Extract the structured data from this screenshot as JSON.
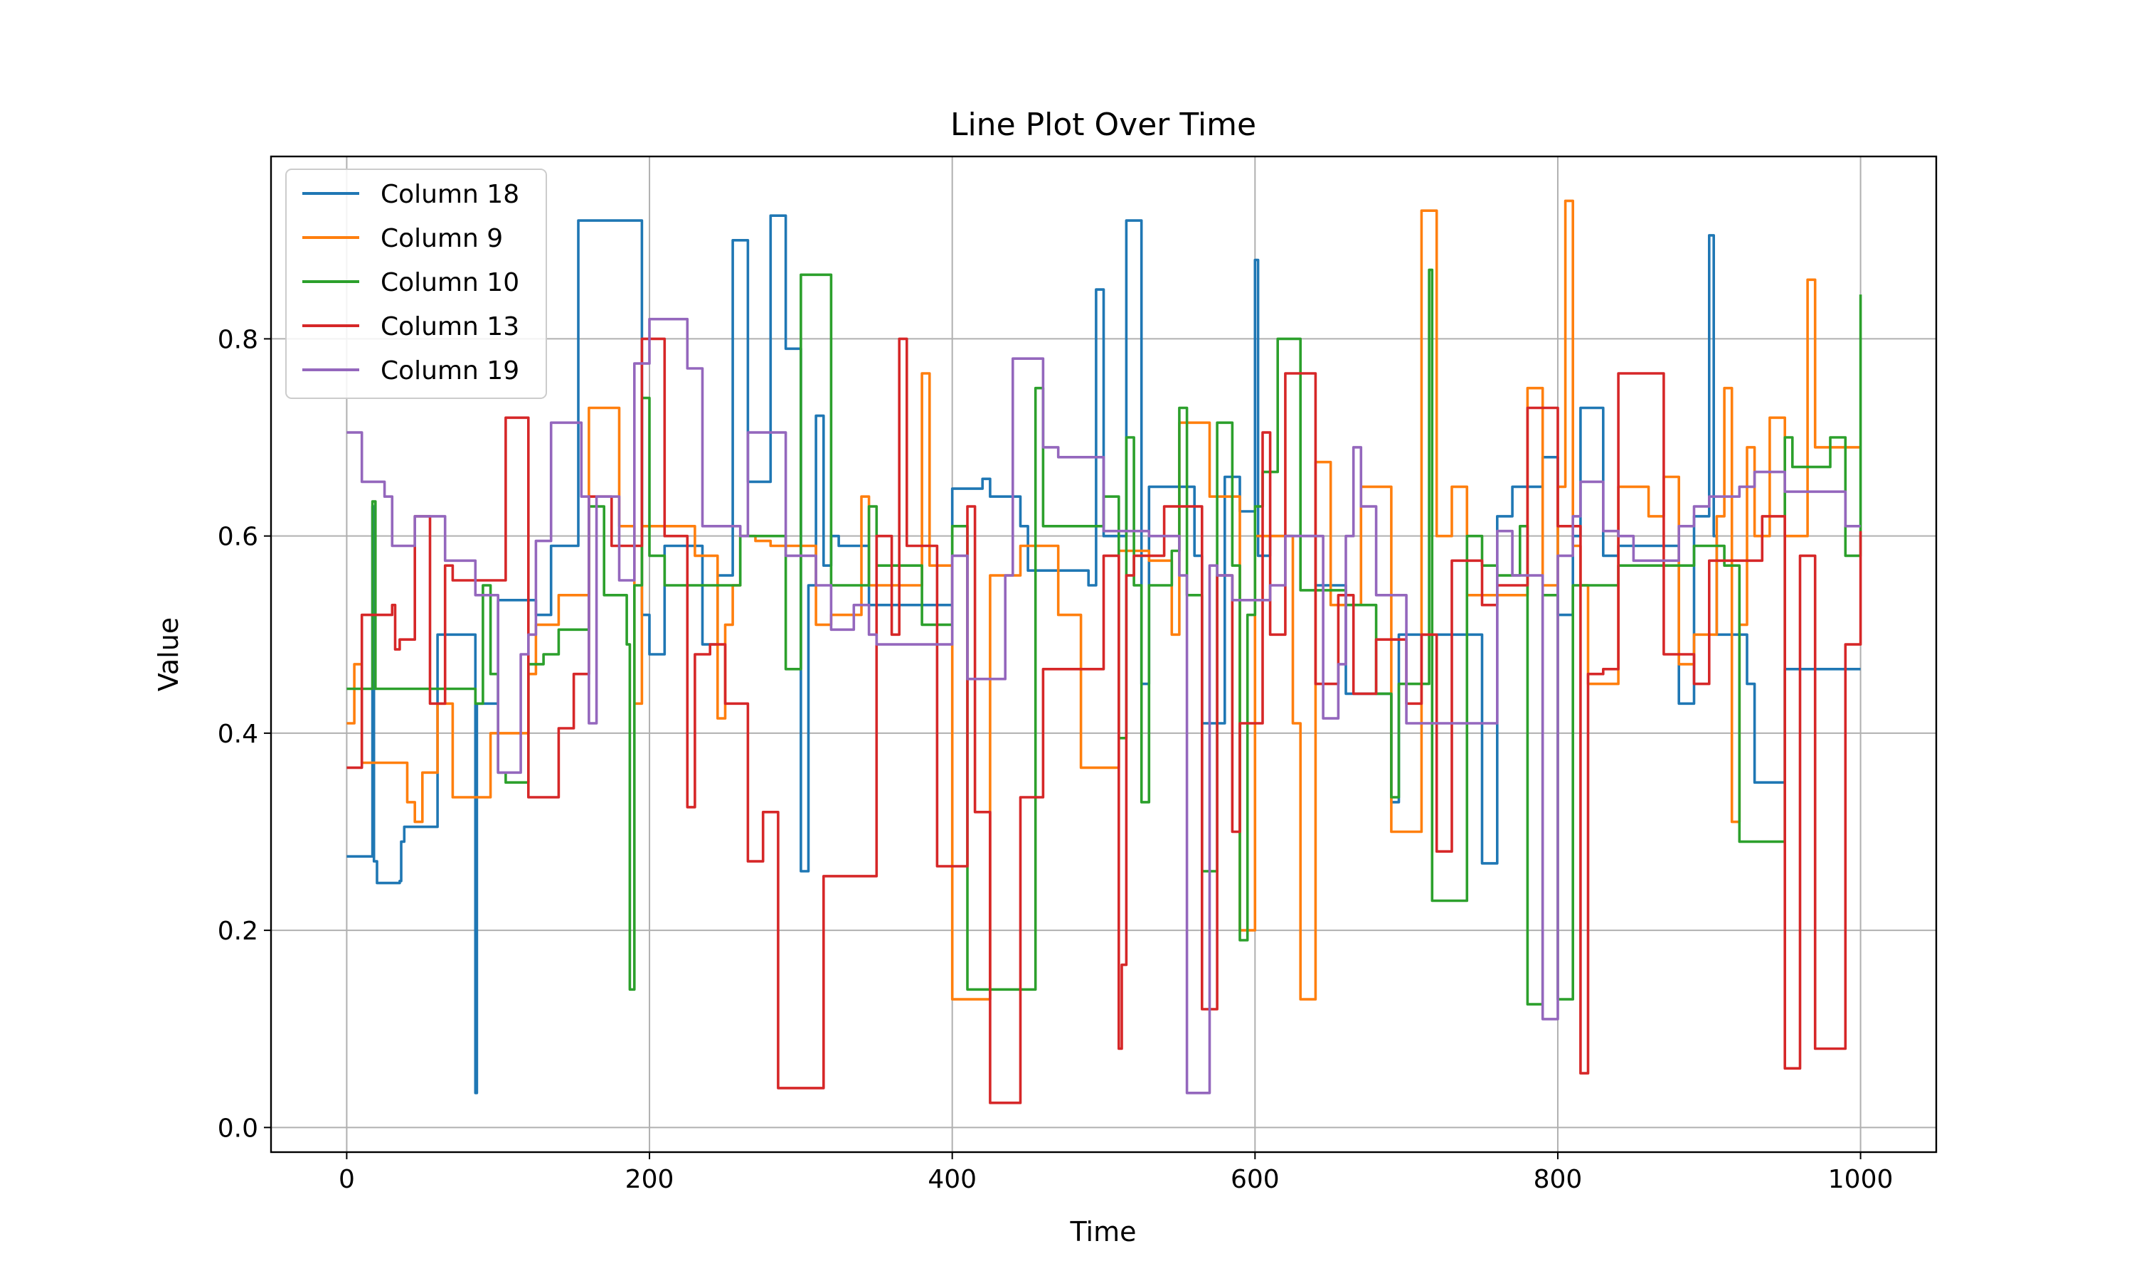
{
  "chart_data": {
    "type": "line",
    "step": true,
    "title": "Line Plot Over Time",
    "xlabel": "Time",
    "ylabel": "Value",
    "xlim": [
      -50,
      1050
    ],
    "ylim": [
      -0.025,
      0.985
    ],
    "xticks": [
      0,
      200,
      400,
      600,
      800,
      1000
    ],
    "xtick_labels": [
      "0",
      "200",
      "400",
      "600",
      "800",
      "1000"
    ],
    "yticks": [
      0.0,
      0.2,
      0.4,
      0.6,
      0.8
    ],
    "ytick_labels": [
      "0.0",
      "0.2",
      "0.4",
      "0.6",
      "0.8"
    ],
    "grid": true,
    "legend_position": "upper left",
    "series": [
      {
        "name": "Column 18",
        "color": "#1f77b4",
        "x": [
          0,
          16,
          17,
          18,
          20,
          28,
          35,
          36,
          38,
          60,
          65,
          84,
          85,
          86,
          100,
          110,
          125,
          135,
          150,
          153,
          155,
          195,
          200,
          205,
          210,
          220,
          235,
          245,
          255,
          265,
          270,
          280,
          290,
          295,
          300,
          305,
          310,
          315,
          320,
          325,
          340,
          345,
          350,
          355,
          365,
          400,
          405,
          410,
          420,
          425,
          435,
          440,
          445,
          450,
          460,
          470,
          490,
          495,
          500,
          510,
          515,
          520,
          525,
          530,
          535,
          545,
          560,
          565,
          570,
          580,
          585,
          590,
          600,
          602,
          605,
          610,
          620,
          640,
          650,
          660,
          670,
          680,
          690,
          695,
          700,
          720,
          740,
          750,
          760,
          770,
          780,
          790,
          800,
          810,
          815,
          820,
          830,
          840,
          850,
          870,
          880,
          890,
          900,
          903,
          905,
          915,
          925,
          930,
          935,
          945,
          950,
          1000
        ],
        "values": [
          0.275,
          0.275,
          0.63,
          0.27,
          0.248,
          0.248,
          0.25,
          0.29,
          0.305,
          0.5,
          0.5,
          0.5,
          0.035,
          0.43,
          0.535,
          0.535,
          0.52,
          0.59,
          0.59,
          0.92,
          0.92,
          0.52,
          0.48,
          0.48,
          0.59,
          0.59,
          0.49,
          0.56,
          0.9,
          0.655,
          0.655,
          0.925,
          0.79,
          0.79,
          0.26,
          0.55,
          0.722,
          0.57,
          0.6,
          0.59,
          0.59,
          0.53,
          0.53,
          0.53,
          0.53,
          0.648,
          0.648,
          0.648,
          0.658,
          0.64,
          0.64,
          0.64,
          0.61,
          0.565,
          0.565,
          0.565,
          0.55,
          0.85,
          0.6,
          0.6,
          0.92,
          0.92,
          0.45,
          0.65,
          0.65,
          0.65,
          0.58,
          0.41,
          0.41,
          0.66,
          0.66,
          0.625,
          0.88,
          0.58,
          0.58,
          0.6,
          0.6,
          0.55,
          0.55,
          0.44,
          0.44,
          0.44,
          0.33,
          0.5,
          0.5,
          0.5,
          0.5,
          0.268,
          0.62,
          0.65,
          0.65,
          0.68,
          0.52,
          0.6,
          0.73,
          0.73,
          0.58,
          0.59,
          0.59,
          0.59,
          0.43,
          0.62,
          0.905,
          0.6,
          0.5,
          0.5,
          0.45,
          0.35,
          0.35,
          0.35,
          0.465,
          0.465
        ]
      },
      {
        "name": "Column 9",
        "color": "#ff7f0e",
        "x": [
          0,
          5,
          10,
          20,
          40,
          45,
          50,
          55,
          60,
          70,
          90,
          95,
          100,
          110,
          120,
          125,
          135,
          140,
          155,
          160,
          175,
          180,
          190,
          195,
          210,
          230,
          245,
          250,
          255,
          260,
          270,
          280,
          300,
          310,
          320,
          330,
          340,
          345,
          350,
          360,
          380,
          385,
          390,
          400,
          420,
          425,
          440,
          445,
          455,
          470,
          485,
          500,
          510,
          520,
          530,
          540,
          545,
          550,
          560,
          570,
          580,
          590,
          600,
          620,
          625,
          630,
          640,
          650,
          660,
          670,
          690,
          700,
          710,
          715,
          720,
          730,
          740,
          760,
          770,
          780,
          790,
          800,
          805,
          810,
          815,
          820,
          830,
          840,
          850,
          860,
          870,
          880,
          890,
          900,
          905,
          910,
          915,
          920,
          925,
          930,
          940,
          950,
          960,
          965,
          970,
          1000
        ],
        "values": [
          0.41,
          0.47,
          0.37,
          0.37,
          0.33,
          0.31,
          0.36,
          0.36,
          0.43,
          0.335,
          0.335,
          0.4,
          0.4,
          0.4,
          0.46,
          0.51,
          0.51,
          0.54,
          0.54,
          0.73,
          0.73,
          0.61,
          0.43,
          0.61,
          0.61,
          0.58,
          0.415,
          0.51,
          0.55,
          0.6,
          0.595,
          0.59,
          0.59,
          0.51,
          0.52,
          0.52,
          0.64,
          0.55,
          0.55,
          0.55,
          0.765,
          0.57,
          0.57,
          0.13,
          0.13,
          0.56,
          0.56,
          0.59,
          0.59,
          0.52,
          0.365,
          0.365,
          0.585,
          0.585,
          0.575,
          0.575,
          0.5,
          0.715,
          0.715,
          0.64,
          0.64,
          0.2,
          0.6,
          0.6,
          0.41,
          0.13,
          0.675,
          0.53,
          0.53,
          0.65,
          0.3,
          0.3,
          0.93,
          0.93,
          0.6,
          0.65,
          0.54,
          0.54,
          0.54,
          0.75,
          0.55,
          0.65,
          0.94,
          0.59,
          0.55,
          0.45,
          0.45,
          0.65,
          0.65,
          0.62,
          0.66,
          0.47,
          0.5,
          0.5,
          0.62,
          0.75,
          0.31,
          0.51,
          0.69,
          0.6,
          0.72,
          0.6,
          0.6,
          0.86,
          0.69,
          0.69
        ]
      },
      {
        "name": "Column 10",
        "color": "#2ca02c",
        "x": [
          0,
          15,
          17,
          19,
          22,
          45,
          80,
          85,
          90,
          95,
          100,
          105,
          115,
          120,
          125,
          130,
          140,
          150,
          160,
          170,
          185,
          187,
          190,
          195,
          200,
          210,
          235,
          260,
          280,
          290,
          300,
          310,
          320,
          340,
          345,
          350,
          360,
          380,
          385,
          400,
          410,
          420,
          440,
          455,
          460,
          470,
          500,
          510,
          515,
          520,
          525,
          530,
          545,
          550,
          555,
          560,
          565,
          570,
          575,
          585,
          590,
          595,
          600,
          605,
          615,
          625,
          630,
          640,
          650,
          660,
          670,
          680,
          690,
          695,
          700,
          715,
          717,
          720,
          730,
          740,
          750,
          760,
          770,
          775,
          780,
          790,
          800,
          805,
          810,
          820,
          830,
          840,
          850,
          860,
          870,
          880,
          890,
          900,
          910,
          920,
          930,
          940,
          950,
          955,
          960,
          980,
          985,
          990,
          995,
          1000
        ],
        "values": [
          0.445,
          0.445,
          0.635,
          0.445,
          0.445,
          0.445,
          0.445,
          0.43,
          0.55,
          0.46,
          0.36,
          0.35,
          0.35,
          0.47,
          0.47,
          0.48,
          0.505,
          0.505,
          0.63,
          0.54,
          0.49,
          0.14,
          0.55,
          0.74,
          0.58,
          0.55,
          0.55,
          0.6,
          0.6,
          0.465,
          0.865,
          0.865,
          0.55,
          0.55,
          0.63,
          0.57,
          0.57,
          0.51,
          0.51,
          0.61,
          0.14,
          0.14,
          0.14,
          0.75,
          0.61,
          0.61,
          0.64,
          0.395,
          0.7,
          0.55,
          0.33,
          0.55,
          0.585,
          0.73,
          0.54,
          0.54,
          0.26,
          0.26,
          0.715,
          0.57,
          0.19,
          0.52,
          0.63,
          0.665,
          0.8,
          0.8,
          0.545,
          0.545,
          0.545,
          0.53,
          0.53,
          0.44,
          0.335,
          0.45,
          0.45,
          0.87,
          0.23,
          0.23,
          0.23,
          0.6,
          0.57,
          0.56,
          0.56,
          0.61,
          0.125,
          0.54,
          0.13,
          0.13,
          0.55,
          0.55,
          0.55,
          0.57,
          0.57,
          0.57,
          0.57,
          0.57,
          0.59,
          0.59,
          0.57,
          0.29,
          0.29,
          0.29,
          0.7,
          0.67,
          0.67,
          0.7,
          0.7,
          0.58,
          0.58,
          0.845
        ]
      },
      {
        "name": "Column 13",
        "color": "#d62728",
        "x": [
          0,
          5,
          10,
          25,
          30,
          32,
          35,
          45,
          50,
          55,
          60,
          65,
          70,
          80,
          105,
          110,
          120,
          125,
          140,
          150,
          160,
          175,
          180,
          195,
          210,
          225,
          230,
          240,
          245,
          250,
          265,
          275,
          285,
          300,
          315,
          330,
          345,
          350,
          360,
          365,
          370,
          390,
          400,
          410,
          415,
          425,
          435,
          445,
          460,
          480,
          500,
          510,
          512,
          515,
          520,
          525,
          540,
          565,
          570,
          575,
          585,
          590,
          600,
          605,
          610,
          620,
          625,
          640,
          655,
          665,
          670,
          680,
          690,
          700,
          710,
          720,
          730,
          740,
          750,
          760,
          770,
          780,
          790,
          800,
          810,
          815,
          820,
          830,
          840,
          860,
          870,
          880,
          890,
          900,
          910,
          920,
          935,
          950,
          955,
          960,
          965,
          970,
          990,
          1000
        ],
        "values": [
          0.365,
          0.365,
          0.52,
          0.52,
          0.53,
          0.485,
          0.495,
          0.62,
          0.62,
          0.43,
          0.43,
          0.57,
          0.555,
          0.555,
          0.72,
          0.72,
          0.335,
          0.335,
          0.405,
          0.46,
          0.64,
          0.59,
          0.59,
          0.8,
          0.6,
          0.325,
          0.48,
          0.49,
          0.49,
          0.43,
          0.27,
          0.32,
          0.04,
          0.04,
          0.255,
          0.255,
          0.255,
          0.6,
          0.5,
          0.8,
          0.59,
          0.265,
          0.265,
          0.63,
          0.32,
          0.025,
          0.025,
          0.335,
          0.465,
          0.465,
          0.58,
          0.08,
          0.165,
          0.56,
          0.58,
          0.58,
          0.63,
          0.12,
          0.12,
          0.56,
          0.3,
          0.41,
          0.41,
          0.705,
          0.5,
          0.765,
          0.765,
          0.45,
          0.54,
          0.44,
          0.44,
          0.495,
          0.495,
          0.43,
          0.5,
          0.28,
          0.575,
          0.575,
          0.53,
          0.55,
          0.55,
          0.73,
          0.73,
          0.61,
          0.61,
          0.055,
          0.46,
          0.465,
          0.765,
          0.765,
          0.48,
          0.48,
          0.45,
          0.575,
          0.575,
          0.575,
          0.62,
          0.06,
          0.06,
          0.58,
          0.58,
          0.08,
          0.49,
          0.605
        ]
      },
      {
        "name": "Column 19",
        "color": "#9467bd",
        "x": [
          0,
          5,
          10,
          20,
          25,
          30,
          40,
          45,
          60,
          65,
          70,
          85,
          95,
          100,
          110,
          115,
          120,
          125,
          135,
          150,
          155,
          160,
          165,
          170,
          180,
          190,
          200,
          210,
          225,
          235,
          245,
          260,
          265,
          275,
          290,
          300,
          310,
          320,
          335,
          340,
          345,
          350,
          360,
          380,
          390,
          400,
          410,
          430,
          435,
          440,
          460,
          470,
          480,
          500,
          510,
          530,
          550,
          555,
          560,
          565,
          570,
          575,
          585,
          600,
          610,
          620,
          635,
          645,
          655,
          660,
          665,
          670,
          680,
          690,
          700,
          710,
          720,
          740,
          760,
          770,
          780,
          790,
          800,
          810,
          815,
          825,
          830,
          840,
          850,
          860,
          880,
          890,
          900,
          920,
          930,
          950,
          960,
          980,
          990,
          1000
        ],
        "values": [
          0.705,
          0.705,
          0.655,
          0.655,
          0.64,
          0.59,
          0.59,
          0.62,
          0.62,
          0.575,
          0.575,
          0.54,
          0.54,
          0.36,
          0.36,
          0.48,
          0.5,
          0.595,
          0.715,
          0.715,
          0.64,
          0.41,
          0.64,
          0.64,
          0.555,
          0.775,
          0.82,
          0.82,
          0.77,
          0.61,
          0.61,
          0.6,
          0.705,
          0.705,
          0.58,
          0.58,
          0.55,
          0.505,
          0.53,
          0.53,
          0.5,
          0.49,
          0.49,
          0.49,
          0.49,
          0.58,
          0.455,
          0.455,
          0.56,
          0.78,
          0.69,
          0.68,
          0.68,
          0.605,
          0.605,
          0.6,
          0.56,
          0.035,
          0.035,
          0.035,
          0.57,
          0.56,
          0.535,
          0.535,
          0.55,
          0.6,
          0.6,
          0.415,
          0.47,
          0.6,
          0.69,
          0.63,
          0.54,
          0.54,
          0.41,
          0.41,
          0.41,
          0.41,
          0.605,
          0.56,
          0.56,
          0.11,
          0.58,
          0.62,
          0.655,
          0.655,
          0.605,
          0.6,
          0.575,
          0.575,
          0.61,
          0.63,
          0.64,
          0.65,
          0.665,
          0.645,
          0.645,
          0.645,
          0.61,
          0.61
        ]
      }
    ]
  }
}
